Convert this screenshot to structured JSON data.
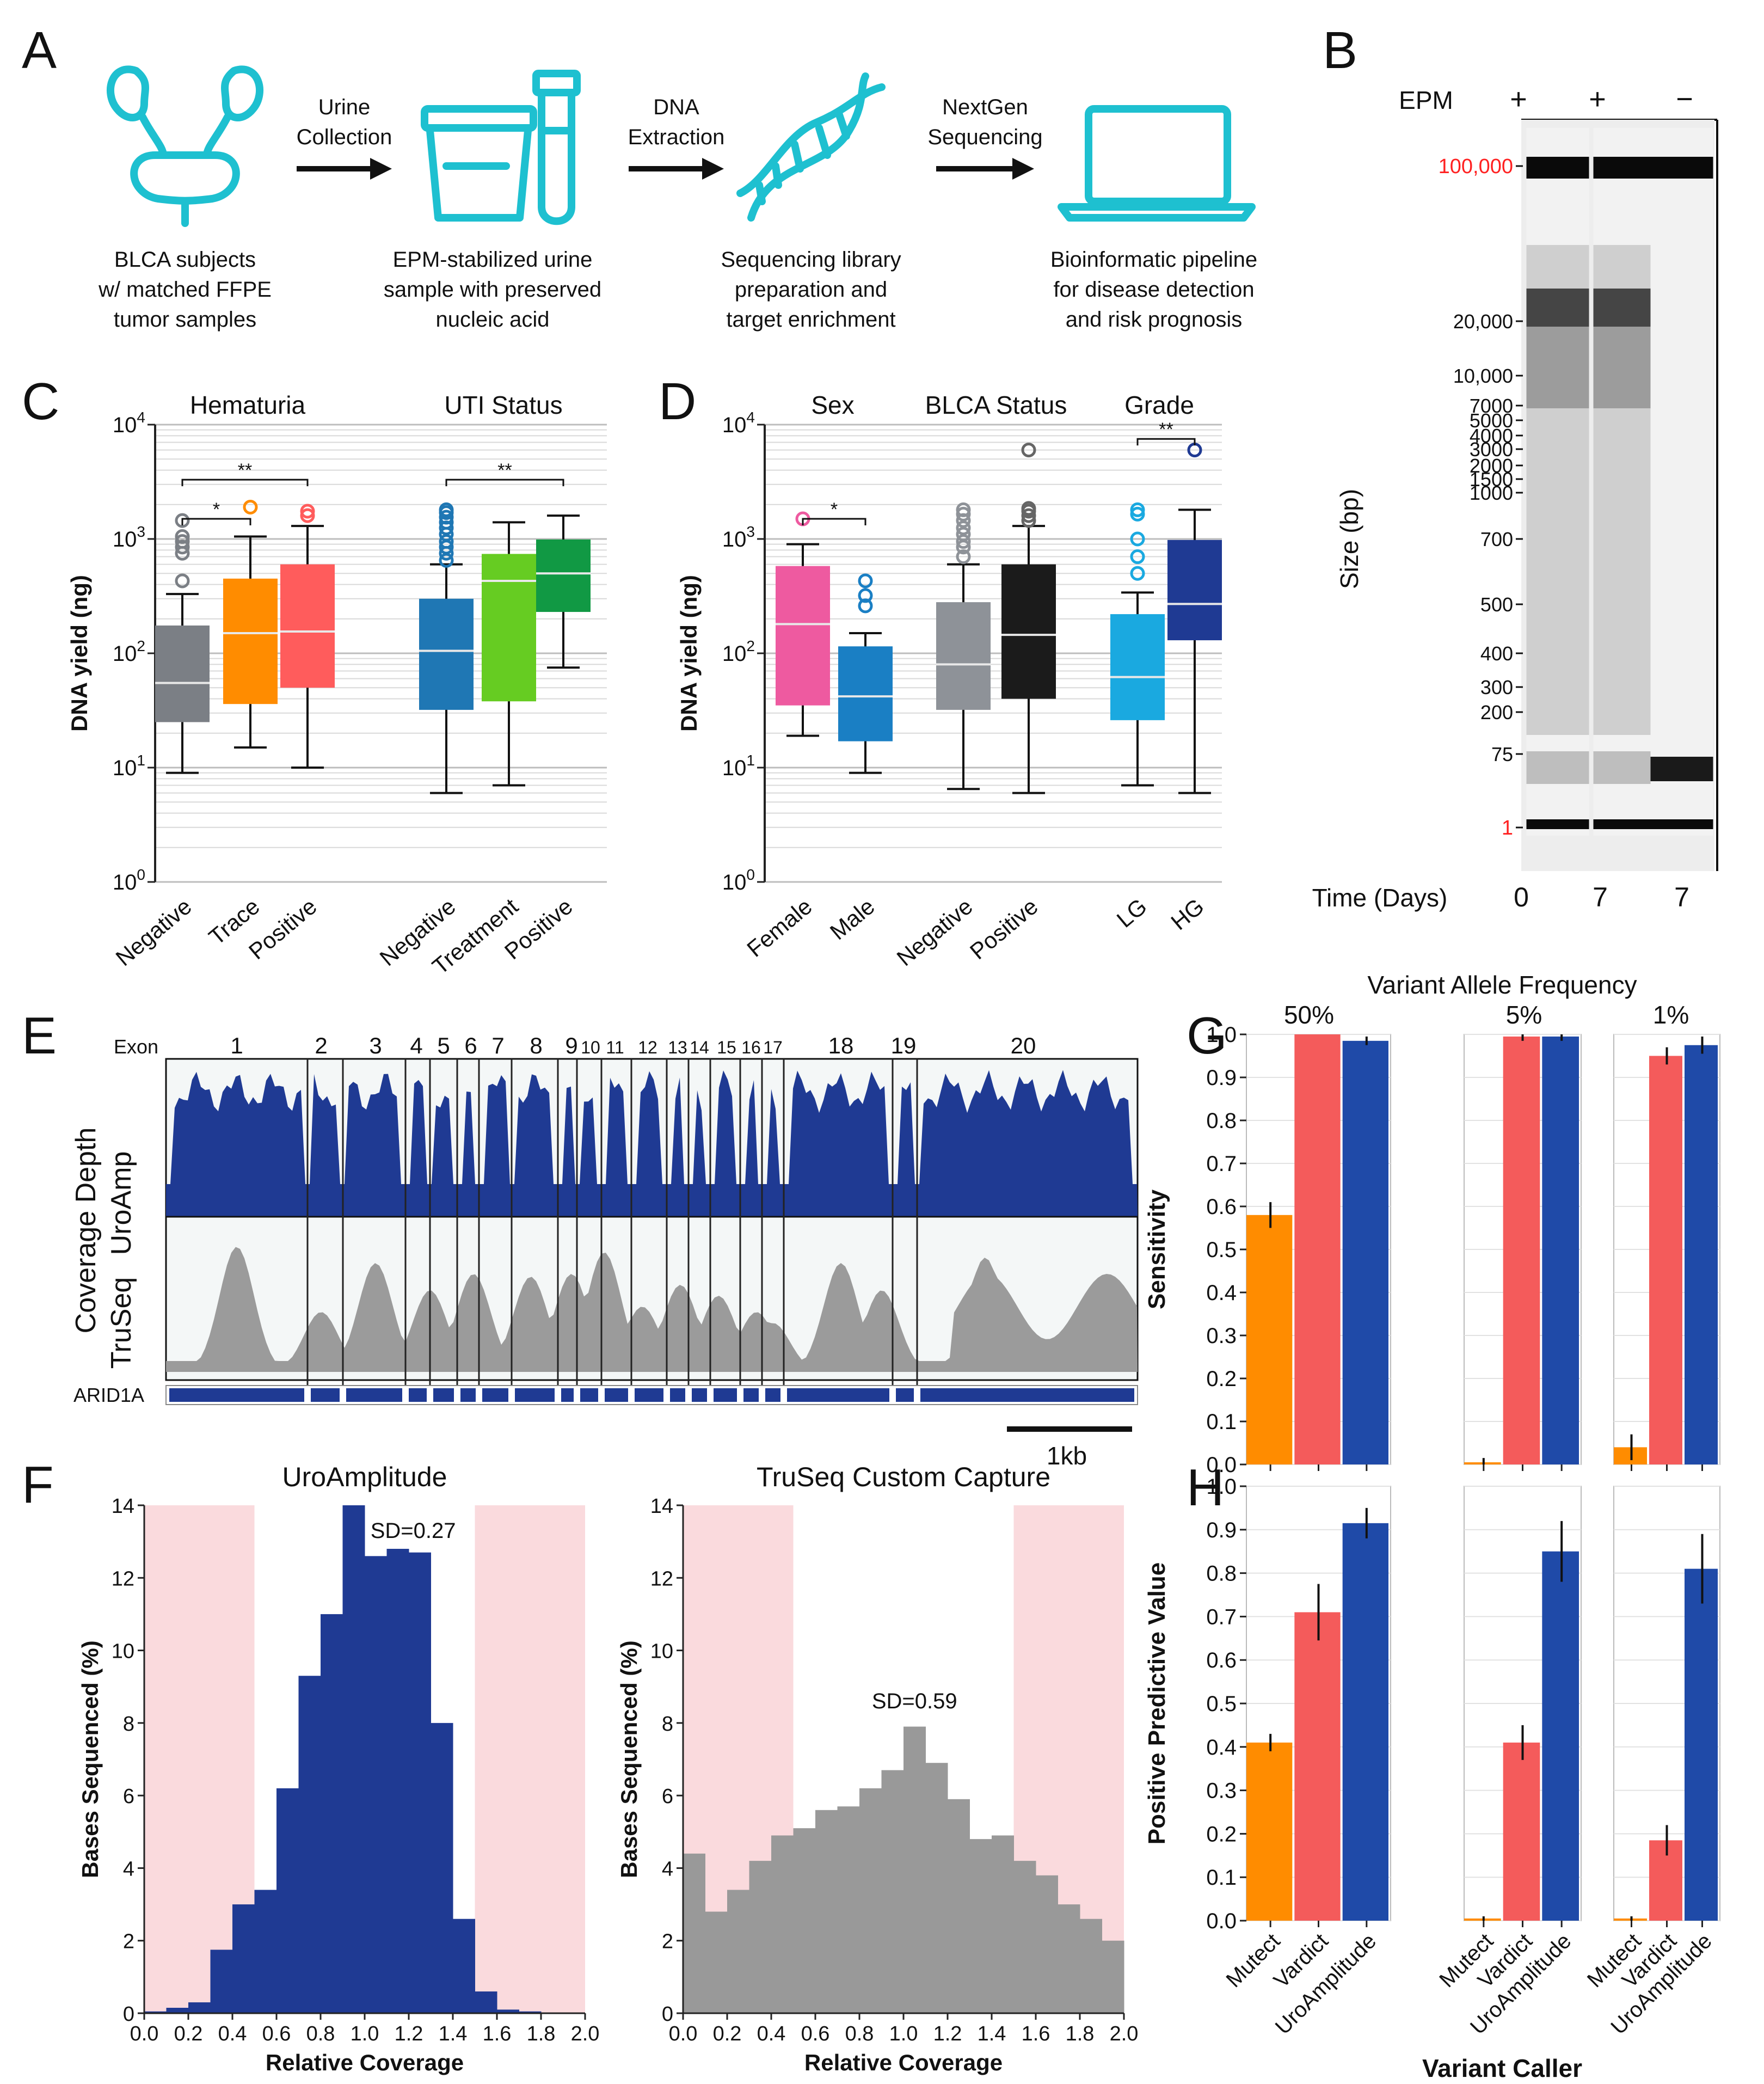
{
  "panels": {
    "A": {
      "letter": "A",
      "arrow_labels": [
        [
          "Urine",
          "Collection"
        ],
        [
          "DNA",
          "Extraction"
        ],
        [
          "NextGen",
          "Sequencing"
        ]
      ],
      "captions": [
        [
          "BLCA subjects",
          "w/ matched FFPE",
          "tumor samples"
        ],
        [
          "EPM-stabilized urine",
          "sample with preserved",
          "nucleic acid"
        ],
        [
          "Sequencing library",
          "preparation and",
          "target enrichment"
        ],
        [
          "Bioinformatic pipeline",
          "for disease detection",
          "and risk prognosis"
        ]
      ],
      "icons": [
        "kidney-urinary-tract-icon",
        "urine-cup-test-tube-icon",
        "dna-helix-icon",
        "laptop-icon"
      ],
      "accent": "#1ec0d0"
    },
    "B": {
      "letter": "B",
      "epm_label": "EPM",
      "epm_signs": [
        "+",
        "+",
        "−"
      ],
      "time_label": "Time (Days)",
      "time_values": [
        "0",
        "7",
        "7"
      ],
      "ylabel": "Size (bp)",
      "size_markers": [
        "100,000",
        "20,000",
        "10,000",
        "7000",
        "5000",
        "4000",
        "3000",
        "2000",
        "1500",
        "1000",
        "700",
        "500",
        "400",
        "300",
        "200",
        "75",
        "1"
      ],
      "red_markers": [
        "100,000",
        "1"
      ]
    },
    "E": {
      "letter": "E",
      "exon_label": "Exon",
      "exons": [
        "1",
        "2",
        "3",
        "4",
        "5",
        "6",
        "7",
        "8",
        "9",
        "10",
        "11",
        "12",
        "13",
        "14",
        "15",
        "16",
        "17",
        "18",
        "19",
        "20"
      ],
      "ylabel": "Coverage Depth",
      "tracks": [
        "UroAmp",
        "TruSeq"
      ],
      "gene": "ARID1A",
      "scale_label": "1kb"
    }
  },
  "chart_data": [
    {
      "panel": "C",
      "type": "boxplot",
      "groups": [
        {
          "title": "Hematuria",
          "categories": [
            "Negative",
            "Trace",
            "Positive"
          ]
        },
        {
          "title": "UTI Status",
          "categories": [
            "Negative",
            "Treatment",
            "Positive"
          ]
        }
      ],
      "ylabel": "DNA yield (ng)",
      "yscale": "log",
      "ylim": [
        1,
        10000
      ],
      "yticks": [
        "10^0",
        "10^1",
        "10^2",
        "10^3",
        "10^4"
      ],
      "boxes": [
        {
          "category": "Negative",
          "color": "#7b7f85",
          "q1": 25,
          "median": 55,
          "q3": 175,
          "whisker_low": 9,
          "whisker_high": 330,
          "outliers": [
            430,
            750,
            850,
            950,
            1050,
            1450
          ]
        },
        {
          "category": "Trace",
          "color": "#ff8c00",
          "q1": 36,
          "median": 150,
          "q3": 450,
          "whisker_low": 15,
          "whisker_high": 1050,
          "outliers": [
            1900
          ]
        },
        {
          "category": "Positive",
          "color": "#ff5c5c",
          "q1": 50,
          "median": 155,
          "q3": 600,
          "whisker_low": 10,
          "whisker_high": 1300,
          "outliers": [
            1600,
            1750
          ]
        },
        {
          "category": "Negative",
          "color": "#1f77b4",
          "q1": 32,
          "median": 105,
          "q3": 300,
          "whisker_low": 6,
          "whisker_high": 600,
          "outliers": [
            650,
            750,
            850,
            950,
            1100,
            1250,
            1400,
            1550,
            1700,
            1800
          ]
        },
        {
          "category": "Treatment",
          "color": "#66cc22",
          "q1": 38,
          "median": 430,
          "q3": 740,
          "whisker_low": 7,
          "whisker_high": 1400,
          "outliers": []
        },
        {
          "category": "Positive",
          "color": "#119944",
          "q1": 230,
          "median": 500,
          "q3": 990,
          "whisker_low": 75,
          "whisker_high": 1600,
          "outliers": []
        }
      ],
      "significance": [
        {
          "from": 0,
          "to": 1,
          "label": "*"
        },
        {
          "from": 0,
          "to": 2,
          "label": "**"
        },
        {
          "from": 3,
          "to": 5,
          "label": "**"
        }
      ]
    },
    {
      "panel": "D",
      "type": "boxplot",
      "groups": [
        {
          "title": "Sex",
          "categories": [
            "Female",
            "Male"
          ]
        },
        {
          "title": "BLCA Status",
          "categories": [
            "Negative",
            "Positive"
          ]
        },
        {
          "title": "Grade",
          "categories": [
            "LG",
            "HG"
          ]
        }
      ],
      "ylabel": "DNA yield (ng)",
      "yscale": "log",
      "ylim": [
        1,
        10000
      ],
      "yticks": [
        "10^0",
        "10^1",
        "10^2",
        "10^3",
        "10^4"
      ],
      "boxes": [
        {
          "category": "Female",
          "color": "#ee5aa0",
          "q1": 35,
          "median": 180,
          "q3": 580,
          "whisker_low": 19,
          "whisker_high": 900,
          "outliers": [
            1500
          ]
        },
        {
          "category": "Male",
          "color": "#1a7fc4",
          "q1": 17,
          "median": 42,
          "q3": 115,
          "whisker_low": 9,
          "whisker_high": 150,
          "outliers": [
            260,
            320,
            430
          ]
        },
        {
          "category": "Negative",
          "color": "#8e9298",
          "q1": 32,
          "median": 80,
          "q3": 280,
          "whisker_low": 6.5,
          "whisker_high": 600,
          "outliers": [
            700,
            850,
            950,
            1100,
            1250,
            1450,
            1650,
            1800
          ]
        },
        {
          "category": "Positive",
          "color": "#1b1b1b",
          "q1": 40,
          "median": 145,
          "q3": 600,
          "whisker_low": 6,
          "whisker_high": 1300,
          "outliers": [
            1450,
            1600,
            1750,
            1850,
            6000
          ]
        },
        {
          "category": "LG",
          "color": "#1aa9e0",
          "q1": 26,
          "median": 62,
          "q3": 220,
          "whisker_low": 7,
          "whisker_high": 340,
          "outliers": [
            500,
            700,
            1000,
            1650,
            1800
          ]
        },
        {
          "category": "HG",
          "color": "#1f3a93",
          "q1": 130,
          "median": 270,
          "q3": 980,
          "whisker_low": 6,
          "whisker_high": 1800,
          "outliers": [
            6000
          ]
        }
      ],
      "significance": [
        {
          "from": 0,
          "to": 1,
          "label": "*"
        },
        {
          "from": 4,
          "to": 5,
          "label": "**"
        }
      ]
    },
    {
      "panel": "F",
      "type": "bar",
      "title": "UroAmplitude",
      "annotation": "SD=0.27",
      "xlabel": "Relative Coverage",
      "ylabel": "Bases Sequenced (%)",
      "xlim": [
        0,
        2.0
      ],
      "ylim": [
        0,
        14
      ],
      "xticks": [
        "0.0",
        "0.2",
        "0.4",
        "0.6",
        "0.8",
        "1.0",
        "1.2",
        "1.4",
        "1.6",
        "1.8",
        "2.0"
      ],
      "yticks": [
        "0",
        "2",
        "4",
        "6",
        "8",
        "10",
        "12",
        "14"
      ],
      "bin_width": 0.1,
      "bins_start": [
        0.0,
        0.1,
        0.2,
        0.3,
        0.4,
        0.5,
        0.6,
        0.7,
        0.8,
        0.9,
        1.0,
        1.1,
        1.2,
        1.3,
        1.4,
        1.5,
        1.6,
        1.7,
        1.8,
        1.9
      ],
      "values": [
        0.05,
        0.15,
        0.3,
        1.75,
        3.0,
        3.4,
        6.2,
        9.3,
        11.0,
        14.0,
        12.6,
        12.8,
        12.7,
        8.0,
        2.6,
        0.6,
        0.1,
        0.05,
        0,
        0
      ],
      "color": "#1f3a93",
      "shaded_ranges": [
        [
          0,
          0.5
        ],
        [
          1.5,
          2.0
        ]
      ],
      "shade_color": "#fadadd"
    },
    {
      "panel": "F",
      "type": "bar",
      "title": "TruSeq Custom Capture",
      "annotation": "SD=0.59",
      "xlabel": "Relative Coverage",
      "ylabel": "Bases Sequenced (%)",
      "xlim": [
        0,
        2.0
      ],
      "ylim": [
        0,
        14
      ],
      "xticks": [
        "0.0",
        "0.2",
        "0.4",
        "0.6",
        "0.8",
        "1.0",
        "1.2",
        "1.4",
        "1.6",
        "1.8",
        "2.0"
      ],
      "yticks": [
        "0",
        "2",
        "4",
        "6",
        "8",
        "10",
        "12",
        "14"
      ],
      "bin_width": 0.1,
      "bins_start": [
        0.0,
        0.1,
        0.2,
        0.3,
        0.4,
        0.5,
        0.6,
        0.7,
        0.8,
        0.9,
        1.0,
        1.1,
        1.2,
        1.3,
        1.4,
        1.5,
        1.6,
        1.7,
        1.8,
        1.9
      ],
      "values": [
        4.4,
        2.8,
        3.4,
        4.2,
        4.9,
        5.1,
        5.6,
        5.7,
        6.2,
        6.7,
        7.9,
        6.9,
        5.9,
        4.8,
        4.9,
        4.2,
        3.8,
        3.0,
        2.6,
        2.0
      ],
      "color": "#999999",
      "shaded_ranges": [
        [
          0,
          0.5
        ],
        [
          1.5,
          2.0
        ]
      ],
      "shade_color": "#fadadd"
    },
    {
      "panel": "G",
      "type": "bar",
      "title": "Variant Allele Frequency",
      "facets": [
        "50%",
        "5%",
        "1%"
      ],
      "ylabel": "Sensitivity",
      "ylim": [
        0,
        1.0
      ],
      "yticks": [
        "0.0",
        "0.1",
        "0.2",
        "0.3",
        "0.4",
        "0.5",
        "0.6",
        "0.7",
        "0.8",
        "0.9",
        "1.0"
      ],
      "categories": [
        "Mutect",
        "Vardict",
        "UroAmplitude"
      ],
      "colors": [
        "#ff8c00",
        "#f45b5b",
        "#1f4aa8"
      ],
      "series": [
        {
          "facet": "50%",
          "values": [
            0.58,
            1.0,
            0.985
          ],
          "errors": [
            0.03,
            0.0,
            0.01
          ]
        },
        {
          "facet": "5%",
          "values": [
            0.005,
            0.995,
            0.995
          ],
          "errors": [
            0.01,
            0.01,
            0.01
          ]
        },
        {
          "facet": "1%",
          "values": [
            0.04,
            0.95,
            0.975
          ],
          "errors": [
            0.03,
            0.02,
            0.02
          ]
        }
      ]
    },
    {
      "panel": "H",
      "type": "bar",
      "facets": [
        "50%",
        "5%",
        "1%"
      ],
      "xlabel": "Variant Caller",
      "ylabel": "Positive Predictive Value",
      "ylim": [
        0,
        1.0
      ],
      "yticks": [
        "0.0",
        "0.1",
        "0.2",
        "0.3",
        "0.4",
        "0.5",
        "0.6",
        "0.7",
        "0.8",
        "0.9",
        "1.0"
      ],
      "categories": [
        "Mutect",
        "Vardict",
        "UroAmplitude"
      ],
      "colors": [
        "#ff8c00",
        "#f45b5b",
        "#1f4aa8"
      ],
      "series": [
        {
          "facet": "50%",
          "values": [
            0.41,
            0.71,
            0.915
          ],
          "errors": [
            0.02,
            0.065,
            0.035
          ]
        },
        {
          "facet": "5%",
          "values": [
            0.005,
            0.41,
            0.85
          ],
          "errors": [
            0.005,
            0.04,
            0.07
          ]
        },
        {
          "facet": "1%",
          "values": [
            0.005,
            0.185,
            0.81
          ],
          "errors": [
            0.005,
            0.035,
            0.08
          ]
        }
      ]
    }
  ]
}
